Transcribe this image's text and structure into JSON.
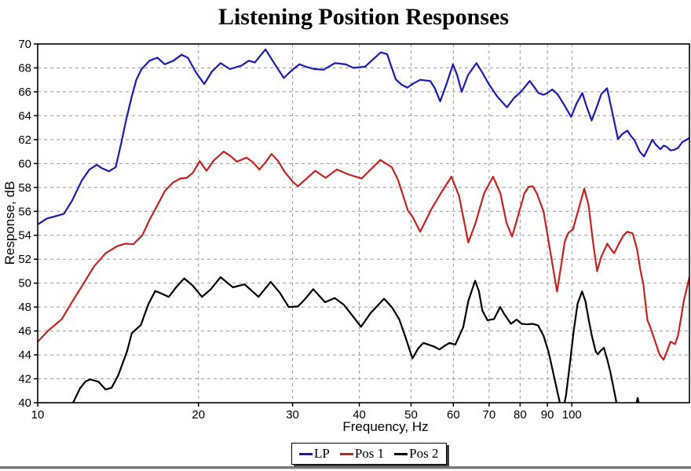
{
  "chart_data": {
    "type": "line",
    "title": "Listening Position Responses",
    "xlabel": "Frequency, Hz",
    "ylabel": "Response, dB",
    "x_scale": "log",
    "xlim": [
      10,
      166
    ],
    "ylim": [
      40,
      70
    ],
    "x_ticks": [
      10,
      20,
      30,
      40,
      50,
      60,
      70,
      80,
      90,
      100
    ],
    "y_ticks": [
      40,
      42,
      44,
      46,
      48,
      50,
      52,
      54,
      56,
      58,
      60,
      62,
      64,
      66,
      68,
      70
    ],
    "grid": true,
    "grid_color": "#999999",
    "axis_color": "#000000",
    "background": "#ffffff",
    "legend_position": "bottom-center",
    "series": [
      {
        "name": "LP",
        "color": "#1B1BB3",
        "points": [
          [
            10,
            54.9
          ],
          [
            10.4,
            55.4
          ],
          [
            10.8,
            55.6
          ],
          [
            11.2,
            55.8
          ],
          [
            11.6,
            56.9
          ],
          [
            12.1,
            58.6
          ],
          [
            12.5,
            59.5
          ],
          [
            12.9,
            59.9
          ],
          [
            13.2,
            59.6
          ],
          [
            13.6,
            59.35
          ],
          [
            14.0,
            59.7
          ],
          [
            14.35,
            61.8
          ],
          [
            14.65,
            63.7
          ],
          [
            15.0,
            65.6
          ],
          [
            15.3,
            67.0
          ],
          [
            15.65,
            67.9
          ],
          [
            16.2,
            68.6
          ],
          [
            16.75,
            68.85
          ],
          [
            17.3,
            68.3
          ],
          [
            17.95,
            68.6
          ],
          [
            18.6,
            69.1
          ],
          [
            19.1,
            68.85
          ],
          [
            19.8,
            67.6
          ],
          [
            20.5,
            66.65
          ],
          [
            21.2,
            67.7
          ],
          [
            22.0,
            68.4
          ],
          [
            22.9,
            67.9
          ],
          [
            24.1,
            68.2
          ],
          [
            24.85,
            68.6
          ],
          [
            25.5,
            68.45
          ],
          [
            26.7,
            69.55
          ],
          [
            27.8,
            68.3
          ],
          [
            28.9,
            67.15
          ],
          [
            29.9,
            67.8
          ],
          [
            30.9,
            68.3
          ],
          [
            32.0,
            68.05
          ],
          [
            33.0,
            67.9
          ],
          [
            34.3,
            67.85
          ],
          [
            36.0,
            68.4
          ],
          [
            37.7,
            68.3
          ],
          [
            39.0,
            68.0
          ],
          [
            41.0,
            68.1
          ],
          [
            42.4,
            68.7
          ],
          [
            43.9,
            69.3
          ],
          [
            45.1,
            69.15
          ],
          [
            46.8,
            67.05
          ],
          [
            48.0,
            66.6
          ],
          [
            49.2,
            66.35
          ],
          [
            50.5,
            66.7
          ],
          [
            52.0,
            67.0
          ],
          [
            54.3,
            66.9
          ],
          [
            55.4,
            66.3
          ],
          [
            56.7,
            65.2
          ],
          [
            58.2,
            66.6
          ],
          [
            59.9,
            68.3
          ],
          [
            61.0,
            67.4
          ],
          [
            62.2,
            66.0
          ],
          [
            63.9,
            67.4
          ],
          [
            66.3,
            68.4
          ],
          [
            68.0,
            67.6
          ],
          [
            70.0,
            66.6
          ],
          [
            72.5,
            65.6
          ],
          [
            75.6,
            64.7
          ],
          [
            78.0,
            65.5
          ],
          [
            80.3,
            66.0
          ],
          [
            83.4,
            66.9
          ],
          [
            85.0,
            66.4
          ],
          [
            86.6,
            65.9
          ],
          [
            88.5,
            65.75
          ],
          [
            90.0,
            65.9
          ],
          [
            91.9,
            66.2
          ],
          [
            94.0,
            65.8
          ],
          [
            96.5,
            65.0
          ],
          [
            99.7,
            63.9
          ],
          [
            102.0,
            65.0
          ],
          [
            104.6,
            65.9
          ],
          [
            106.5,
            64.8
          ],
          [
            108.9,
            63.6
          ],
          [
            111.5,
            64.8
          ],
          [
            113.5,
            65.8
          ],
          [
            116.4,
            66.3
          ],
          [
            119.0,
            64.3
          ],
          [
            122.0,
            62.05
          ],
          [
            124.5,
            62.5
          ],
          [
            127.0,
            62.75
          ],
          [
            129.0,
            62.3
          ],
          [
            131.0,
            61.95
          ],
          [
            134.0,
            61.0
          ],
          [
            136.5,
            60.6
          ],
          [
            139.0,
            61.3
          ],
          [
            141.5,
            62.0
          ],
          [
            143.5,
            61.6
          ],
          [
            146.5,
            61.2
          ],
          [
            148.5,
            61.5
          ],
          [
            150.5,
            61.4
          ],
          [
            153.0,
            61.1
          ],
          [
            155.5,
            61.15
          ],
          [
            158.0,
            61.3
          ],
          [
            161.0,
            61.8
          ],
          [
            163.5,
            61.95
          ],
          [
            166,
            62.15
          ]
        ]
      },
      {
        "name": "Pos 1",
        "color": "#C52222",
        "points": [
          [
            10,
            45.1
          ],
          [
            10.45,
            46.0
          ],
          [
            11.1,
            47.0
          ],
          [
            11.55,
            48.3
          ],
          [
            12.2,
            50.0
          ],
          [
            12.75,
            51.4
          ],
          [
            13.4,
            52.5
          ],
          [
            14.1,
            53.1
          ],
          [
            14.6,
            53.3
          ],
          [
            15.1,
            53.25
          ],
          [
            15.7,
            54.0
          ],
          [
            16.2,
            55.3
          ],
          [
            16.75,
            56.5
          ],
          [
            17.3,
            57.7
          ],
          [
            17.9,
            58.4
          ],
          [
            18.5,
            58.75
          ],
          [
            19.0,
            58.8
          ],
          [
            19.5,
            59.2
          ],
          [
            20.1,
            60.2
          ],
          [
            20.7,
            59.4
          ],
          [
            21.4,
            60.3
          ],
          [
            22.3,
            61.0
          ],
          [
            23.0,
            60.6
          ],
          [
            23.6,
            60.15
          ],
          [
            24.6,
            60.5
          ],
          [
            25.3,
            60.1
          ],
          [
            26.0,
            59.5
          ],
          [
            26.7,
            60.1
          ],
          [
            27.4,
            60.8
          ],
          [
            28.2,
            60.2
          ],
          [
            29.0,
            59.3
          ],
          [
            30.0,
            58.5
          ],
          [
            30.7,
            58.1
          ],
          [
            31.8,
            58.7
          ],
          [
            33.1,
            59.4
          ],
          [
            34.6,
            58.8
          ],
          [
            36.3,
            59.5
          ],
          [
            38.1,
            59.1
          ],
          [
            40.4,
            58.75
          ],
          [
            42.0,
            59.5
          ],
          [
            43.8,
            60.3
          ],
          [
            46.0,
            59.7
          ],
          [
            47.3,
            58.6
          ],
          [
            49.3,
            56.1
          ],
          [
            50.4,
            55.5
          ],
          [
            52.0,
            54.3
          ],
          [
            54.6,
            56.2
          ],
          [
            57.0,
            57.6
          ],
          [
            59.5,
            58.9
          ],
          [
            61.5,
            57.3
          ],
          [
            64.0,
            53.4
          ],
          [
            66.0,
            55.0
          ],
          [
            68.5,
            57.5
          ],
          [
            71.2,
            58.9
          ],
          [
            73.5,
            57.5
          ],
          [
            75.5,
            55.0
          ],
          [
            77.3,
            53.9
          ],
          [
            79.5,
            55.8
          ],
          [
            81.5,
            57.5
          ],
          [
            83.0,
            58.05
          ],
          [
            84.5,
            58.1
          ],
          [
            86.0,
            57.5
          ],
          [
            88.5,
            56.0
          ],
          [
            91.0,
            52.8
          ],
          [
            93.8,
            49.3
          ],
          [
            95.5,
            51.5
          ],
          [
            97.0,
            53.5
          ],
          [
            98.5,
            54.2
          ],
          [
            100.5,
            54.5
          ],
          [
            102.5,
            55.9
          ],
          [
            105.5,
            57.9
          ],
          [
            107.5,
            56.5
          ],
          [
            109.5,
            53.5
          ],
          [
            111.5,
            51.0
          ],
          [
            113.5,
            52.2
          ],
          [
            116.5,
            53.3
          ],
          [
            118.5,
            52.8
          ],
          [
            120.0,
            52.5
          ],
          [
            122.5,
            53.3
          ],
          [
            125.0,
            54.0
          ],
          [
            127.0,
            54.3
          ],
          [
            130.0,
            54.15
          ],
          [
            132.5,
            52.8
          ],
          [
            134.5,
            51.0
          ],
          [
            136.0,
            50.0
          ],
          [
            138.5,
            46.9
          ],
          [
            140.0,
            46.4
          ],
          [
            141.5,
            45.8
          ],
          [
            144.0,
            44.8
          ],
          [
            146.0,
            44.0
          ],
          [
            148.5,
            43.6
          ],
          [
            151.0,
            44.4
          ],
          [
            153.0,
            45.1
          ],
          [
            154.5,
            45.0
          ],
          [
            156.0,
            44.9
          ],
          [
            158.0,
            45.6
          ],
          [
            160.0,
            47.0
          ],
          [
            162.0,
            48.5
          ],
          [
            164.0,
            49.5
          ],
          [
            166,
            50.5
          ]
        ]
      },
      {
        "name": "Pos 2",
        "color": "#000000",
        "points": [
          [
            11.3,
            39.7
          ],
          [
            11.65,
            40.0
          ],
          [
            12.0,
            41.2
          ],
          [
            12.3,
            41.8
          ],
          [
            12.55,
            41.95
          ],
          [
            13.0,
            41.75
          ],
          [
            13.4,
            41.1
          ],
          [
            13.75,
            41.25
          ],
          [
            14.15,
            42.3
          ],
          [
            14.7,
            44.3
          ],
          [
            15.0,
            45.8
          ],
          [
            15.6,
            46.5
          ],
          [
            16.1,
            48.2
          ],
          [
            16.6,
            49.35
          ],
          [
            17.1,
            49.1
          ],
          [
            17.6,
            48.85
          ],
          [
            18.2,
            49.7
          ],
          [
            18.8,
            50.4
          ],
          [
            19.5,
            49.8
          ],
          [
            20.3,
            48.85
          ],
          [
            21.1,
            49.5
          ],
          [
            22.0,
            50.5
          ],
          [
            23.2,
            49.65
          ],
          [
            24.4,
            49.9
          ],
          [
            25.9,
            48.85
          ],
          [
            27.3,
            50.1
          ],
          [
            28.4,
            49.2
          ],
          [
            29.5,
            48.0
          ],
          [
            30.7,
            48.05
          ],
          [
            31.7,
            48.7
          ],
          [
            32.8,
            49.5
          ],
          [
            34.5,
            48.4
          ],
          [
            36.0,
            48.75
          ],
          [
            37.4,
            48.2
          ],
          [
            38.8,
            47.3
          ],
          [
            40.3,
            46.35
          ],
          [
            42.0,
            47.5
          ],
          [
            44.5,
            48.7
          ],
          [
            46.0,
            48.0
          ],
          [
            47.5,
            47.0
          ],
          [
            48.8,
            45.5
          ],
          [
            50.3,
            43.7
          ],
          [
            51.5,
            44.5
          ],
          [
            52.7,
            45.0
          ],
          [
            55.2,
            44.7
          ],
          [
            56.5,
            44.45
          ],
          [
            58.0,
            44.8
          ],
          [
            59.0,
            45.0
          ],
          [
            60.5,
            44.85
          ],
          [
            62.6,
            46.3
          ],
          [
            64.0,
            48.5
          ],
          [
            65.9,
            50.2
          ],
          [
            67.0,
            49.3
          ],
          [
            68.0,
            47.7
          ],
          [
            69.5,
            46.9
          ],
          [
            71.5,
            47.0
          ],
          [
            73.4,
            48.0
          ],
          [
            75.0,
            47.3
          ],
          [
            76.9,
            46.6
          ],
          [
            78.8,
            46.95
          ],
          [
            80.5,
            46.6
          ],
          [
            82.5,
            46.55
          ],
          [
            84.5,
            46.6
          ],
          [
            86.5,
            46.45
          ],
          [
            88.5,
            45.6
          ],
          [
            90.5,
            44.2
          ],
          [
            92.5,
            42.3
          ],
          [
            94.3,
            40.6
          ],
          [
            95.3,
            39.7
          ],
          [
            96.6,
            39.7
          ],
          [
            97.5,
            40.6
          ],
          [
            99.0,
            43.0
          ],
          [
            100.8,
            46.0
          ],
          [
            102.5,
            48.3
          ],
          [
            104.5,
            49.3
          ],
          [
            106.0,
            48.5
          ],
          [
            107.5,
            47.0
          ],
          [
            109.0,
            45.6
          ],
          [
            110.8,
            44.3
          ],
          [
            111.8,
            44.05
          ],
          [
            113.0,
            44.3
          ],
          [
            114.8,
            44.6
          ],
          [
            116.5,
            43.6
          ],
          [
            118.0,
            42.6
          ],
          [
            120.0,
            41.0
          ],
          [
            121.6,
            39.7
          ],
          [
            131.6,
            39.6
          ],
          [
            132.8,
            40.4
          ],
          [
            134.0,
            39.6
          ]
        ]
      }
    ]
  }
}
